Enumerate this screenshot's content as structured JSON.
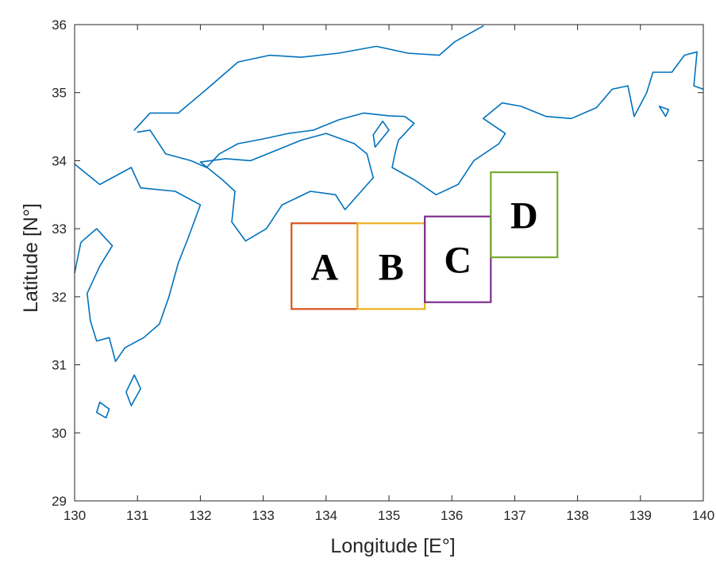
{
  "map": {
    "type": "map",
    "x_axis": {
      "title": "Longitude [E°]",
      "range": [
        130,
        140
      ],
      "ticks": [
        "130",
        "131",
        "132",
        "133",
        "134",
        "135",
        "136",
        "137",
        "138",
        "139",
        "140"
      ]
    },
    "y_axis": {
      "title": "Latitude [N°]",
      "range": [
        29,
        36
      ],
      "ticks": [
        "29",
        "30",
        "31",
        "32",
        "33",
        "34",
        "35",
        "36"
      ]
    },
    "coastline_color": "#0072BD",
    "regions": [
      {
        "label": "A",
        "color": "#D95319",
        "lon": [
          133.45,
          134.5
        ],
        "lat": [
          31.82,
          33.08
        ]
      },
      {
        "label": "B",
        "color": "#EDB120",
        "lon": [
          134.5,
          135.57
        ],
        "lat": [
          31.82,
          33.08
        ]
      },
      {
        "label": "C",
        "color": "#7E2F8E",
        "lon": [
          135.57,
          136.62
        ],
        "lat": [
          31.92,
          33.18
        ]
      },
      {
        "label": "D",
        "color": "#77AC30",
        "lon": [
          136.62,
          137.68
        ],
        "lat": [
          32.58,
          33.83
        ]
      }
    ]
  }
}
